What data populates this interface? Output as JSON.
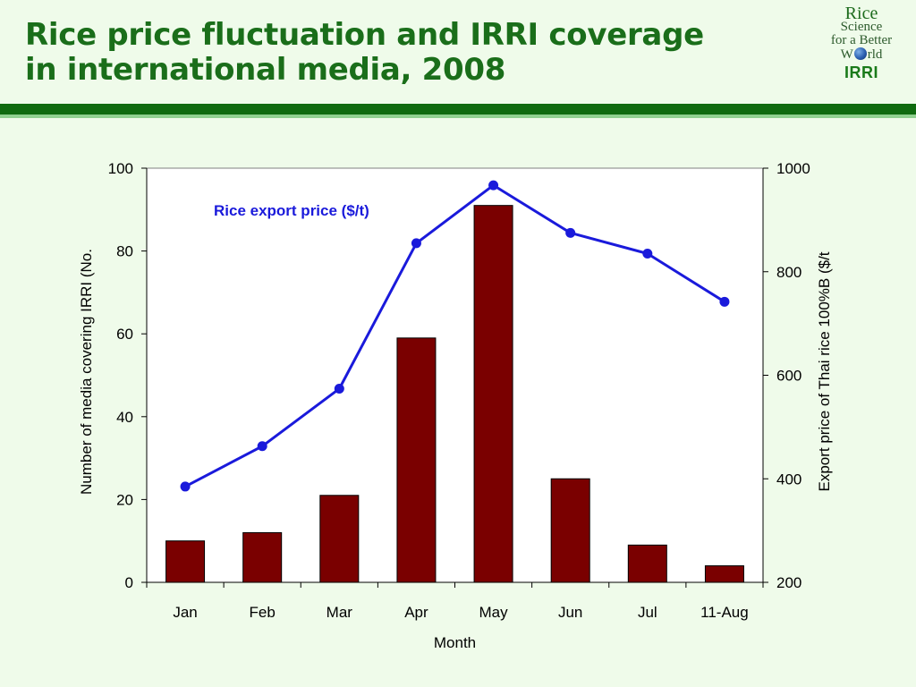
{
  "header": {
    "title_line1": "Rice price fluctuation and IRRI coverage",
    "title_line2": "in international media, 2008"
  },
  "logo": {
    "line1": "Rice",
    "line2": "Science",
    "line3": "for a Better",
    "line4_start": "W",
    "line4_end": "rld",
    "brand": "IRRI"
  },
  "colors": {
    "title": "#1a6e1a",
    "bar": "#7a0000",
    "line": "#1a1adb",
    "rule": "#0f6a0f"
  },
  "chart_data": {
    "type": "bar",
    "categories": [
      "Jan",
      "Feb",
      "Mar",
      "Apr",
      "May",
      "Jun",
      "Jul",
      "11-Aug"
    ],
    "xlabel": "Month",
    "ylabel": "Number of media covering IRRI (No.",
    "y2label": "Export price of Thai rice 100%B ($/t",
    "ylim": [
      0,
      100
    ],
    "y2lim": [
      200,
      1000
    ],
    "yticks": [
      0,
      20,
      40,
      60,
      80,
      100
    ],
    "y2ticks": [
      200,
      400,
      600,
      800,
      1000
    ],
    "grid": false,
    "series": [
      {
        "type": "bar",
        "axis": "left",
        "values": [
          10,
          12,
          21,
          59,
          91,
          25,
          9,
          4
        ]
      },
      {
        "type": "line",
        "axis": "right",
        "name": "Rice export price ($/t)",
        "values": [
          385,
          463,
          574,
          855,
          967,
          875,
          835,
          742
        ]
      }
    ],
    "annotations": [
      {
        "text": "Rice export price ($/t)",
        "series": "line"
      }
    ]
  }
}
